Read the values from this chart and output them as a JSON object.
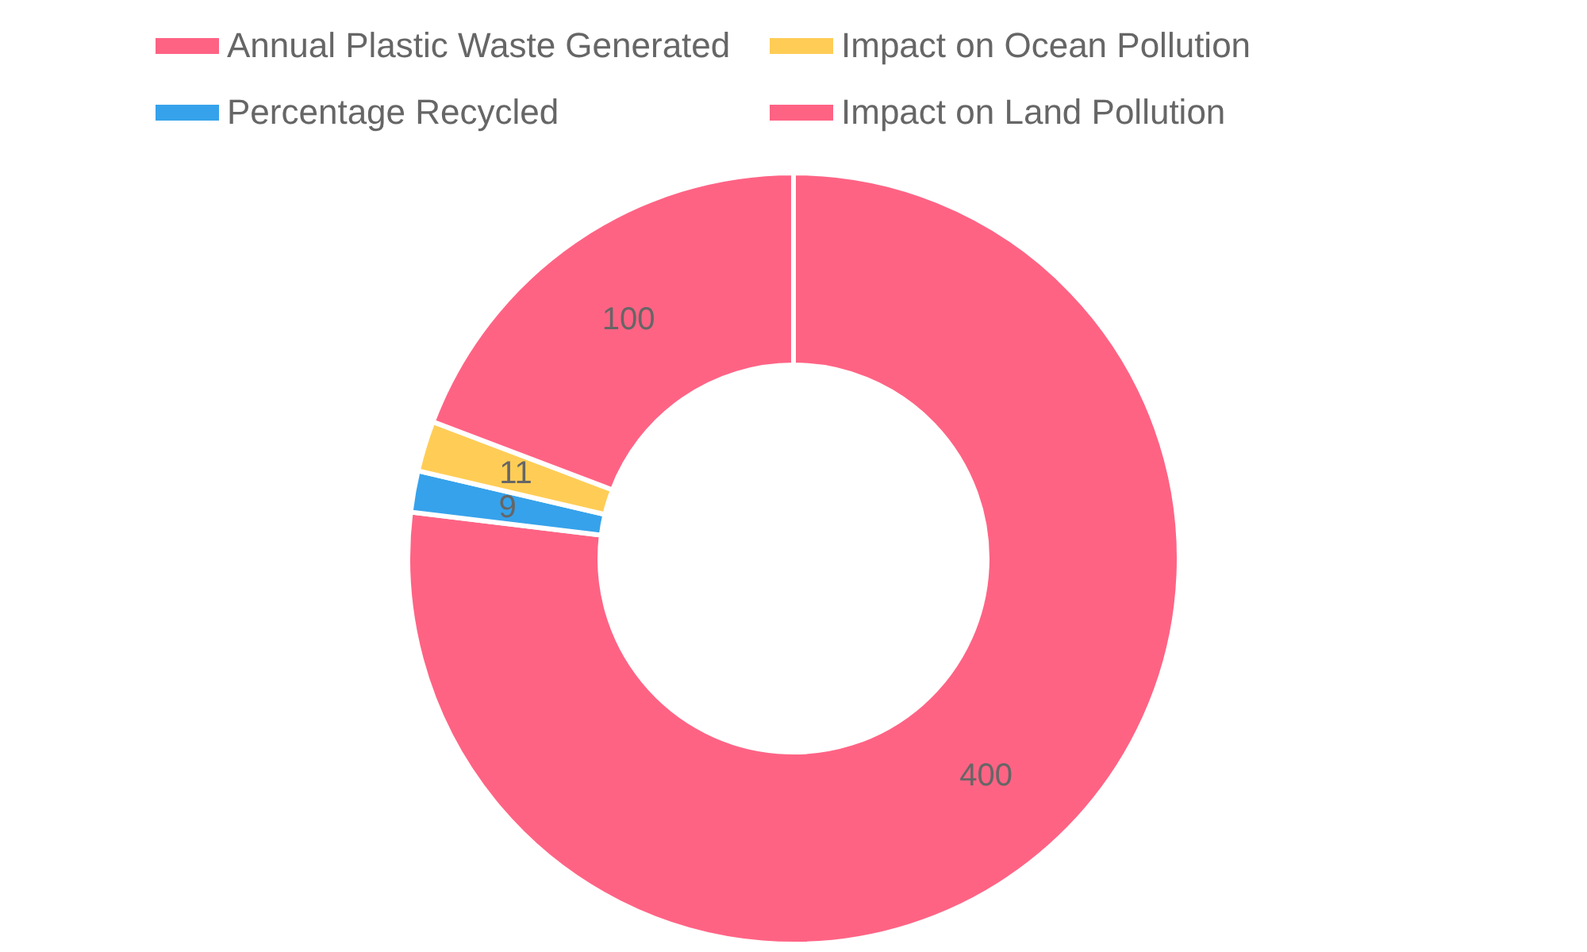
{
  "chart_data": {
    "type": "donut",
    "categories": [
      "Impact on Land Pollution",
      "Percentage Recycled",
      "Impact on Ocean Pollution",
      "Annual Plastic Waste Generated"
    ],
    "values": [
      400,
      9,
      11,
      100
    ],
    "colors": [
      "#ff6384",
      "#36a2eb",
      "#ffcd56",
      "#ff6384"
    ],
    "data_labels": true,
    "legend": "top"
  }
}
